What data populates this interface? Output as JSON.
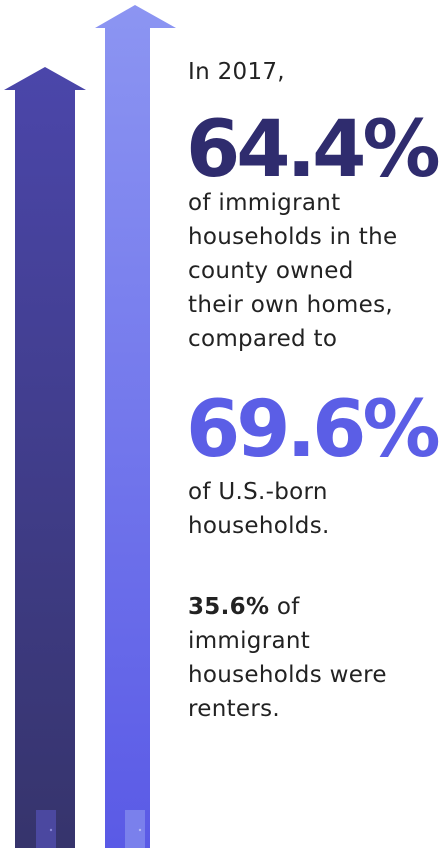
{
  "intro": "In 2017,",
  "stat1": "64.4%",
  "text1": [
    "of immigrant",
    "households in the",
    "county owned",
    "their own homes,",
    "compared to"
  ],
  "stat2": "69.6%",
  "text2": [
    "of U.S.-born",
    "households."
  ],
  "stat3": "35.6%",
  "text3": [
    "of",
    "immigrant",
    "households were",
    "renters."
  ]
}
